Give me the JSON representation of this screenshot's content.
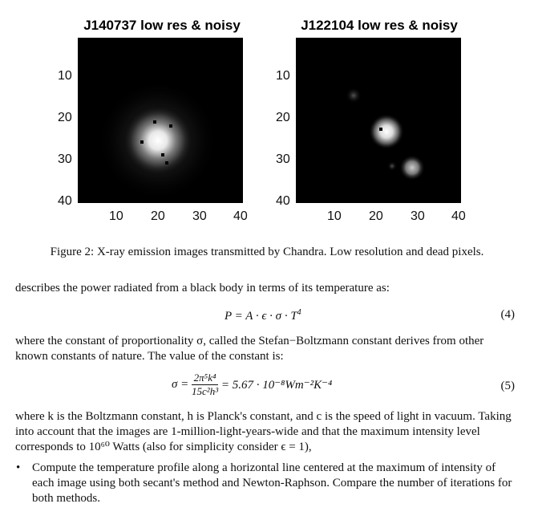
{
  "figure": {
    "panels": [
      {
        "title": "J140737 low res & noisy",
        "y_ticks": [
          "10",
          "20",
          "30",
          "40"
        ],
        "x_ticks": [
          "10",
          "20",
          "30",
          "40"
        ]
      },
      {
        "title": "J122104 low res & noisy",
        "y_ticks": [
          "10",
          "20",
          "30",
          "40"
        ],
        "x_ticks": [
          "10",
          "20",
          "30",
          "40"
        ]
      }
    ],
    "caption": "Figure 2: X-ray emission images transmitted by Chandra. Low resolution and dead pixels."
  },
  "text": {
    "intro": "describes the power radiated from a black body in terms of its temperature as:",
    "eq4_lhs": "P = A · ϵ · σ · T",
    "eq4_exp": "4",
    "eq4_num": "(4)",
    "para2": "where the constant of proportionality σ, called the Stefan−Boltzmann constant derives from other known constants of nature. The value of the constant is:",
    "eq5_sigma": "σ =",
    "eq5_num_top": "2π⁵k⁴",
    "eq5_den": "15c²h³",
    "eq5_rhs": "= 5.67 · 10⁻⁸Wm⁻²K⁻⁴",
    "eq5_num": "(5)",
    "para3": "where k is the Boltzmann constant, h is Planck's constant, and c is the speed of light in vacuum. Taking into account that the images are 1-million-light-years-wide and that the maximum intensity level corresponds to 10⁶⁰ Watts (also for simplicity consider ϵ = 1),",
    "bullet": "Compute the temperature profile along a horizontal line centered at the maximum of intensity of each image using both secant's method and Newton-Raphson. Compare the number of iterations for both methods."
  }
}
